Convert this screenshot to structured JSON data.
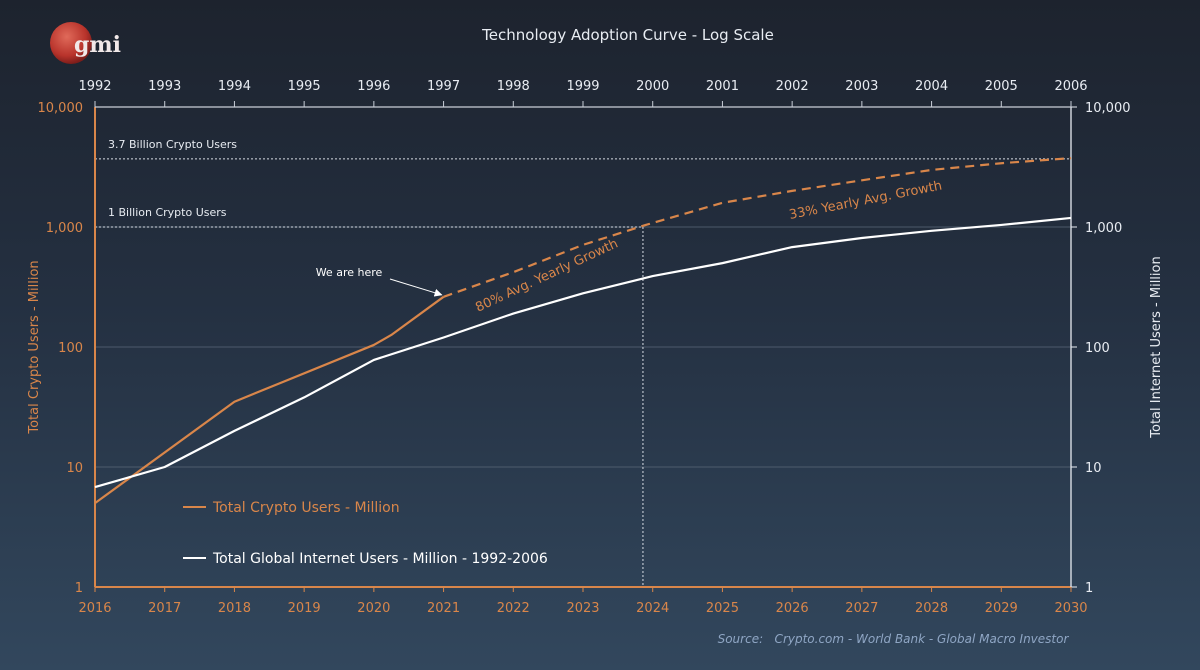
{
  "logo": {
    "text": "gmi"
  },
  "chart_data": {
    "type": "line",
    "title": "Technology Adoption Curve - Log Scale",
    "y_scale": "log",
    "ylim": [
      1,
      10000
    ],
    "y_ticks": [
      "1",
      "10",
      "100",
      "1,000",
      "10,000"
    ],
    "y_tick_values": [
      1,
      10,
      100,
      1000,
      10000
    ],
    "ylabel_left": "Total Crypto Users - Million",
    "ylabel_right": "Total Internet Users - Million",
    "x_bottom_ticks": [
      "2016",
      "2017",
      "2018",
      "2019",
      "2020",
      "2021",
      "2022",
      "2023",
      "2024",
      "2025",
      "2026",
      "2027",
      "2028",
      "2029",
      "2030"
    ],
    "x_top_ticks": [
      "1992",
      "1993",
      "1994",
      "1995",
      "1996",
      "1997",
      "1998",
      "1999",
      "2000",
      "2001",
      "2002",
      "2003",
      "2004",
      "2005",
      "2006"
    ],
    "grid": "horizontal",
    "legend_placement": "bottom-left",
    "colors": {
      "crypto": "#d9864a",
      "internet": "#ffffff",
      "source": "#8fa6c4"
    },
    "series": [
      {
        "name": "Total Crypto Users - Million",
        "axis": "bottom",
        "x": [
          2016,
          2018,
          2020,
          2020.25,
          2021
        ],
        "values": [
          5,
          35,
          104,
          126,
          262
        ]
      },
      {
        "name": "",
        "axis": "bottom",
        "style": "dashed",
        "x": [
          2021,
          2022,
          2023,
          2023.9,
          2025,
          2026,
          2027,
          2028,
          2029,
          2030
        ],
        "values": [
          262,
          420,
          710,
          1040,
          1590,
          2000,
          2450,
          2990,
          3400,
          3750
        ]
      },
      {
        "name": "Total Global Internet Users - Million - 1992-2006",
        "axis": "top",
        "x": [
          1992,
          1993,
          1994,
          1995,
          1996,
          1997,
          1998,
          1999,
          2000,
          2001,
          2002,
          2003,
          2004,
          2005,
          2006
        ],
        "values": [
          6.8,
          10,
          20,
          38,
          78,
          120,
          190,
          280,
          390,
          500,
          680,
          810,
          930,
          1040,
          1190
        ]
      }
    ],
    "reference_lines": [
      {
        "label": "3.7 Billion Crypto Users",
        "value": 3700
      },
      {
        "label": "1 Billion Crypto Users",
        "value": 1000
      }
    ],
    "vertical_line_x": 2023.86,
    "annotations": [
      {
        "text": "We are here",
        "x": 2021,
        "value": 262
      },
      {
        "text": "80% Avg. Yearly Growth"
      },
      {
        "text": "33% Yearly Avg. Growth"
      }
    ],
    "source": "Source:   Crypto.com - World Bank - Global Macro Investor"
  }
}
